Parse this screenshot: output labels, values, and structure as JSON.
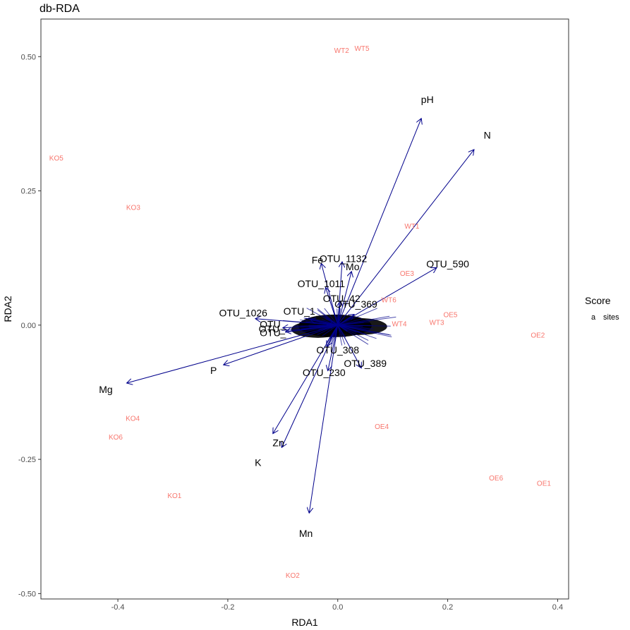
{
  "chart_data": {
    "type": "scatter",
    "title": "db-RDA",
    "xlabel": "RDA1",
    "ylabel": "RDA2",
    "xlim": [
      -0.54,
      0.42
    ],
    "ylim": [
      -0.51,
      0.57
    ],
    "x_ticks": [
      -0.4,
      -0.2,
      0.0,
      0.2,
      0.4
    ],
    "x_tick_labels": [
      "-0.4",
      "-0.2",
      "0.0",
      "0.2",
      "0.4"
    ],
    "y_ticks": [
      -0.5,
      -0.25,
      0.0,
      0.25,
      0.5
    ],
    "y_tick_labels": [
      "-0.50",
      "-0.25",
      "0.00",
      "0.25",
      "0.50"
    ],
    "grid": false,
    "colors": {
      "sites": "#f8766d",
      "arrows": "#00008b",
      "cloud": "#000000",
      "panel_border": "#333333"
    },
    "sites": [
      {
        "label": "WT2",
        "x": 0.007,
        "y": 0.512
      },
      {
        "label": "WT5",
        "x": 0.044,
        "y": 0.516
      },
      {
        "label": "KO5",
        "x": -0.512,
        "y": 0.312
      },
      {
        "label": "KO3",
        "x": -0.372,
        "y": 0.22
      },
      {
        "label": "WT1",
        "x": 0.135,
        "y": 0.185
      },
      {
        "label": "OE3",
        "x": 0.126,
        "y": 0.097
      },
      {
        "label": "WT6",
        "x": 0.093,
        "y": 0.048
      },
      {
        "label": "OE5",
        "x": 0.205,
        "y": 0.02
      },
      {
        "label": "WT4",
        "x": 0.112,
        "y": 0.003
      },
      {
        "label": "WT3",
        "x": 0.18,
        "y": 0.006
      },
      {
        "label": "OE2",
        "x": 0.364,
        "y": -0.018
      },
      {
        "label": "OE4",
        "x": 0.08,
        "y": -0.188
      },
      {
        "label": "KO4",
        "x": -0.373,
        "y": -0.173
      },
      {
        "label": "KO6",
        "x": -0.404,
        "y": -0.208
      },
      {
        "label": "OE6",
        "x": 0.288,
        "y": -0.284
      },
      {
        "label": "OE1",
        "x": 0.375,
        "y": -0.294
      },
      {
        "label": "KO1",
        "x": -0.297,
        "y": -0.317
      },
      {
        "label": "KO2",
        "x": -0.082,
        "y": -0.465
      }
    ],
    "env_vectors": [
      {
        "label": "pH",
        "x": 0.152,
        "y": 0.385,
        "lx": 0.163,
        "ly": 0.42
      },
      {
        "label": "N",
        "x": 0.248,
        "y": 0.327,
        "lx": 0.272,
        "ly": 0.354
      },
      {
        "label": "Mg",
        "x": -0.384,
        "y": -0.108,
        "lx": -0.422,
        "ly": -0.12
      },
      {
        "label": "P",
        "x": -0.208,
        "y": -0.074,
        "lx": -0.226,
        "ly": -0.084
      },
      {
        "label": "Zn",
        "x": -0.102,
        "y": -0.228,
        "lx": -0.108,
        "ly": -0.219
      },
      {
        "label": "K",
        "x": -0.118,
        "y": -0.202,
        "lx": -0.145,
        "ly": -0.256
      },
      {
        "label": "Mn",
        "x": -0.052,
        "y": -0.35,
        "lx": -0.058,
        "ly": -0.388
      },
      {
        "label": "Fe",
        "x": -0.03,
        "y": 0.115,
        "lx": -0.037,
        "ly": 0.121
      },
      {
        "label": "Mo",
        "x": 0.008,
        "y": 0.118,
        "lx": 0.027,
        "ly": 0.109
      }
    ],
    "otu_vectors": [
      {
        "label": "OTU_590",
        "x": 0.18,
        "y": 0.107,
        "lx": 0.2,
        "ly": 0.114
      },
      {
        "label": "OTU_1132",
        "x": 0.025,
        "y": 0.1,
        "lx": 0.01,
        "ly": 0.124
      },
      {
        "label": "OTU_1011",
        "x": -0.022,
        "y": 0.07,
        "lx": -0.03,
        "ly": 0.077
      },
      {
        "label": "OTU_42",
        "x": 0.005,
        "y": 0.045,
        "lx": 0.007,
        "ly": 0.05
      },
      {
        "label": "OTU_1026",
        "x": -0.15,
        "y": 0.012,
        "lx": -0.172,
        "ly": 0.023
      },
      {
        "label": "OTU_389",
        "x": 0.043,
        "y": -0.08,
        "lx": 0.05,
        "ly": -0.071
      },
      {
        "label": "OTU_230",
        "x": -0.018,
        "y": -0.085,
        "lx": -0.025,
        "ly": -0.088
      },
      {
        "label": "OTU_369",
        "x": 0.03,
        "y": 0.02,
        "lx": 0.033,
        "ly": 0.039
      },
      {
        "label": "OTU_",
        "x": -0.1,
        "y": -0.005,
        "lx": -0.118,
        "ly": 0.002
      },
      {
        "label": "OTU_",
        "x": -0.095,
        "y": -0.012,
        "lx": -0.118,
        "ly": -0.014
      },
      {
        "label": "OTU_1",
        "x": -0.05,
        "y": 0.01,
        "lx": -0.07,
        "ly": 0.026
      },
      {
        "label": "OTU_308",
        "x": -0.02,
        "y": -0.04,
        "lx": 0.0,
        "ly": -0.046
      },
      {
        "label": "OTU_",
        "x": -0.02,
        "y": 0.0,
        "lx": -0.12,
        "ly": -0.007
      }
    ],
    "legend": {
      "title": "Score",
      "entries": [
        {
          "key": "a",
          "label": "sites"
        }
      ],
      "position": "right"
    }
  }
}
